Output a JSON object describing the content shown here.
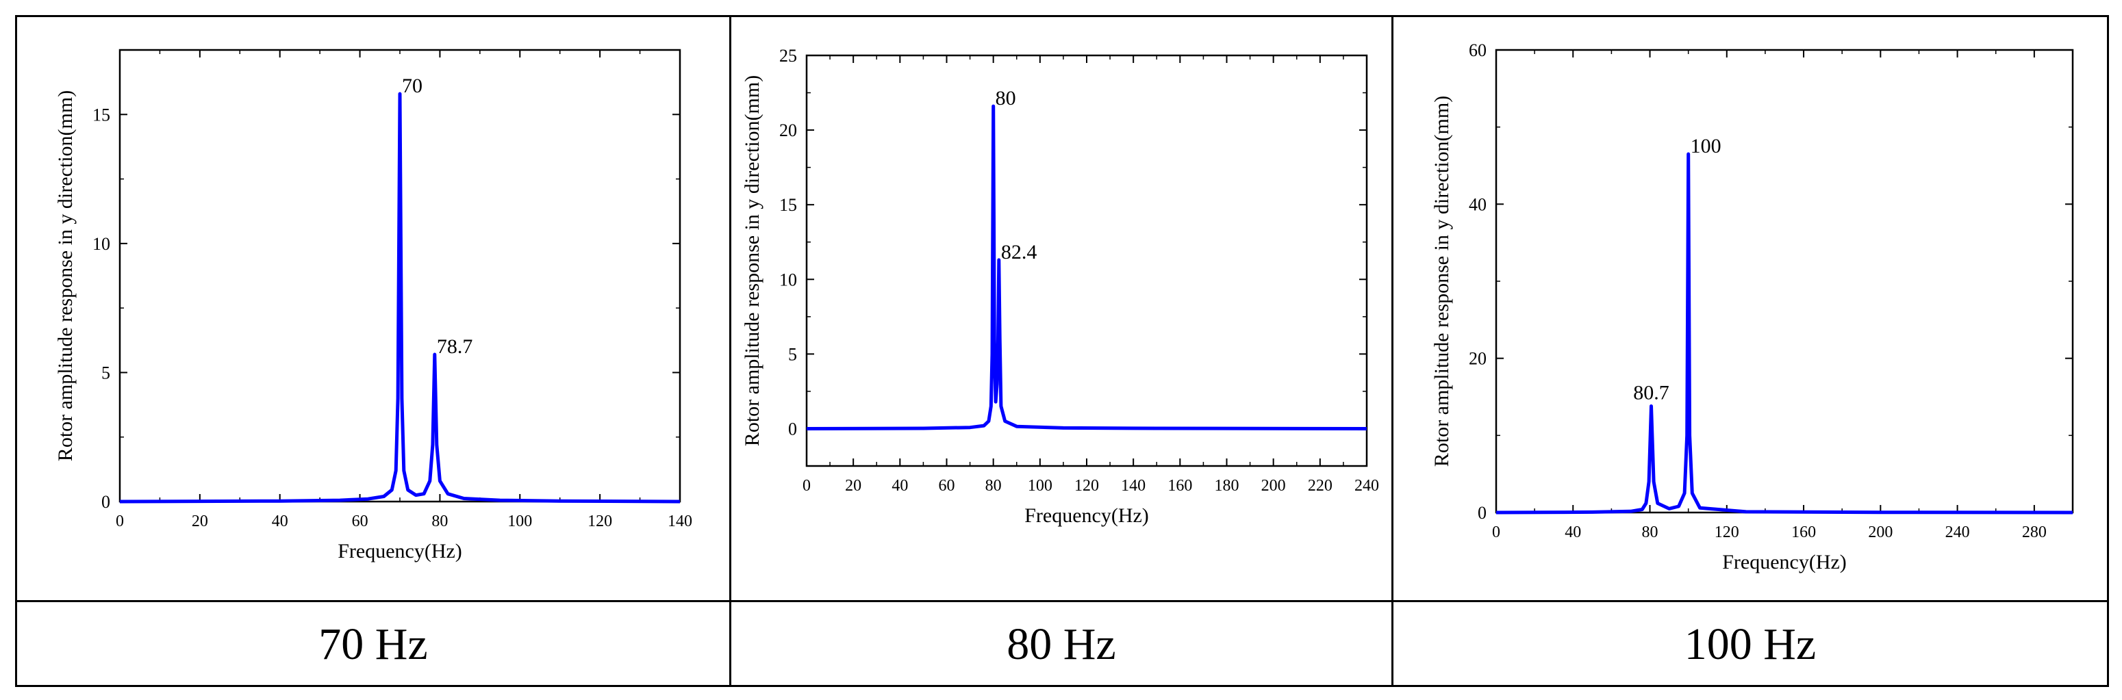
{
  "chart_data": [
    {
      "type": "line",
      "caption": "70 Hz",
      "xlabel": "Frequency(Hz)",
      "ylabel": "Rotor amplitude response in y direction(mm)",
      "xlim": [
        0,
        140
      ],
      "ylim": [
        0,
        17.5
      ],
      "xticks": [
        0,
        20,
        40,
        60,
        80,
        100,
        120,
        140
      ],
      "yticks": [
        0,
        5,
        10,
        15
      ],
      "color": "#0000ff",
      "x": [
        0,
        40,
        55,
        62,
        66,
        68,
        69,
        69.5,
        70,
        70.5,
        71,
        72,
        74,
        76,
        77.5,
        78.2,
        78.7,
        79.2,
        80,
        82,
        86,
        95,
        110,
        140
      ],
      "y": [
        0,
        0.02,
        0.05,
        0.1,
        0.2,
        0.45,
        1.2,
        4.0,
        15.8,
        4.0,
        1.2,
        0.45,
        0.25,
        0.3,
        0.8,
        2.2,
        5.7,
        2.2,
        0.8,
        0.3,
        0.12,
        0.05,
        0.02,
        0
      ],
      "annotations": [
        {
          "x": 70,
          "y": 15.8,
          "text": "70"
        },
        {
          "x": 78.7,
          "y": 5.7,
          "text": "78.7"
        }
      ]
    },
    {
      "type": "line",
      "caption": "80 Hz",
      "xlabel": "Frequency(Hz)",
      "ylabel": "Rotor amplitude response in y direction(mm)",
      "xlim": [
        0,
        240
      ],
      "ylim": [
        -2.5,
        25
      ],
      "xticks": [
        0,
        20,
        40,
        60,
        80,
        100,
        120,
        140,
        160,
        180,
        200,
        220,
        240
      ],
      "yticks": [
        0,
        5,
        10,
        15,
        20,
        25
      ],
      "color": "#0000ff",
      "x": [
        0,
        50,
        70,
        76,
        78,
        79,
        79.5,
        80,
        80.5,
        81,
        81.6,
        82,
        82.4,
        82.8,
        83.3,
        85,
        90,
        110,
        150,
        240
      ],
      "y": [
        0,
        0.02,
        0.08,
        0.2,
        0.5,
        1.5,
        5.0,
        21.6,
        5.0,
        1.8,
        3.0,
        6.0,
        11.3,
        6.0,
        1.5,
        0.5,
        0.15,
        0.05,
        0.02,
        0
      ],
      "annotations": [
        {
          "x": 80,
          "y": 21.6,
          "text": "80"
        },
        {
          "x": 82.4,
          "y": 11.3,
          "text": "82.4"
        }
      ]
    },
    {
      "type": "line",
      "caption": "100 Hz",
      "xlabel": "Frequency(Hz)",
      "ylabel": "Rotor amplitude response in y direction(mm)",
      "xlim": [
        0,
        300
      ],
      "ylim": [
        0,
        60
      ],
      "xticks": [
        0,
        40,
        80,
        120,
        160,
        200,
        240,
        280
      ],
      "yticks": [
        0,
        20,
        40,
        60
      ],
      "color": "#0000ff",
      "x": [
        0,
        50,
        70,
        76,
        78,
        79.5,
        80.7,
        82,
        84,
        90,
        95,
        98,
        99.3,
        100,
        100.7,
        102,
        106,
        130,
        200,
        300
      ],
      "y": [
        0,
        0.05,
        0.15,
        0.4,
        1.2,
        4.0,
        13.8,
        4.0,
        1.2,
        0.5,
        0.8,
        2.5,
        10.0,
        46.5,
        10.0,
        2.5,
        0.6,
        0.1,
        0.03,
        0
      ],
      "annotations": [
        {
          "x": 80.7,
          "y": 13.8,
          "text": "80.7"
        },
        {
          "x": 100,
          "y": 46.5,
          "text": "100"
        }
      ]
    }
  ]
}
